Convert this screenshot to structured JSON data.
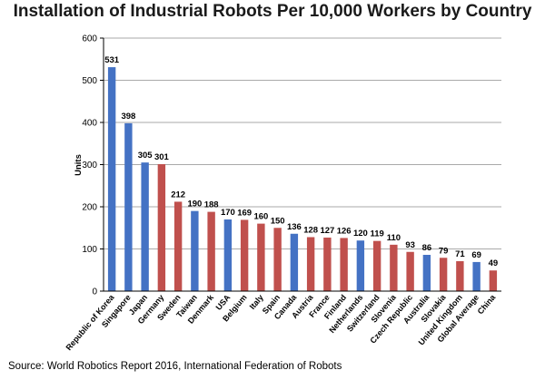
{
  "chart_data": {
    "type": "bar",
    "title": "Installation of Industrial Robots Per 10,000 Workers by Country",
    "ylabel": "Units",
    "xlabel": "",
    "ylim": [
      0,
      600
    ],
    "yticks": [
      0,
      100,
      200,
      300,
      400,
      500,
      600
    ],
    "grid": "horizontal",
    "categories": [
      "Republic of Korea",
      "Singapore",
      "Japan",
      "Germany",
      "Sweden",
      "Taiwan",
      "Denmark",
      "USA",
      "Belgium",
      "Italy",
      "Spain",
      "Canada",
      "Austria",
      "France",
      "Finland",
      "Netherlands",
      "Switzerland",
      "Slovenia",
      "Czech Republic",
      "Australia",
      "Slovakia",
      "United Kingdom",
      "Global Average",
      "China"
    ],
    "values": [
      531,
      398,
      305,
      301,
      212,
      190,
      188,
      170,
      169,
      160,
      150,
      136,
      128,
      127,
      126,
      120,
      119,
      110,
      93,
      86,
      79,
      71,
      69,
      49
    ],
    "colors": [
      "#4472c4",
      "#4472c4",
      "#4472c4",
      "#c0504d",
      "#c0504d",
      "#4472c4",
      "#c0504d",
      "#4472c4",
      "#c0504d",
      "#c0504d",
      "#c0504d",
      "#4472c4",
      "#c0504d",
      "#c0504d",
      "#c0504d",
      "#4472c4",
      "#c0504d",
      "#c0504d",
      "#c0504d",
      "#4472c4",
      "#c0504d",
      "#c0504d",
      "#4472c4",
      "#c0504d"
    ]
  },
  "source": "Source: World Robotics Report 2016, International Federation of Robots"
}
